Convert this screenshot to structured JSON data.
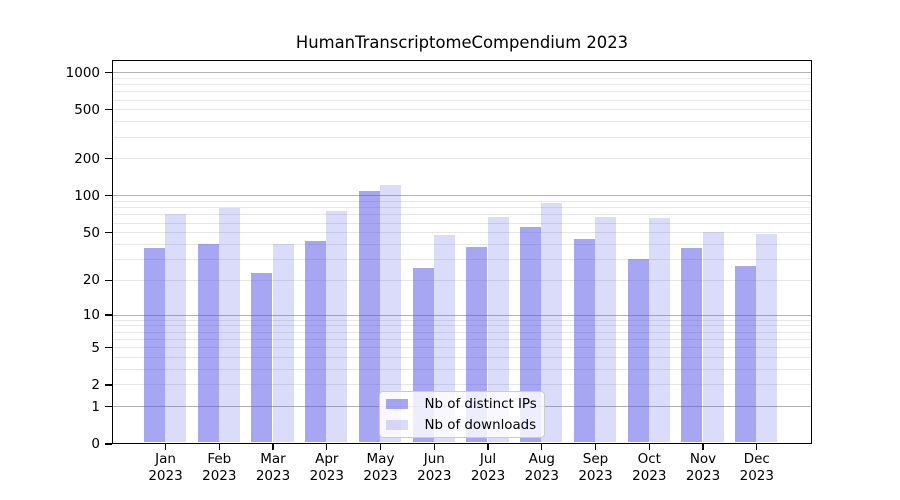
{
  "title": "HumanTranscriptomeCompendium 2023",
  "chart_data": {
    "type": "bar",
    "title": "HumanTranscriptomeCompendium 2023",
    "categories": [
      "Jan 2023",
      "Feb 2023",
      "Mar 2023",
      "Apr 2023",
      "May 2023",
      "Jun 2023",
      "Jul 2023",
      "Aug 2023",
      "Sep 2023",
      "Oct 2023",
      "Nov 2023",
      "Dec 2023"
    ],
    "series": [
      {
        "name": "Nb of distinct IPs",
        "color": "rgba(77,77,230,0.5)",
        "values": [
          37,
          40,
          23,
          42,
          108,
          25,
          38,
          55,
          44,
          30,
          37,
          26
        ]
      },
      {
        "name": "Nb of downloads",
        "color": "rgba(77,77,230,0.2)",
        "values": [
          70,
          79,
          40,
          75,
          121,
          47,
          66,
          87,
          66,
          65,
          50,
          48
        ]
      }
    ],
    "yscale": "log1p",
    "y_ticks": [
      0,
      1,
      2,
      5,
      10,
      20,
      50,
      100,
      200,
      500,
      1000
    ],
    "ylim": [
      0,
      1250
    ],
    "grid": true,
    "legend_position": "lower center",
    "colors": {
      "bar_base": "#4d4de6",
      "major_grid": "#b2b2b2",
      "minor_grid": "#e7e7e7",
      "axis": "#000000",
      "background": "#ffffff"
    }
  }
}
